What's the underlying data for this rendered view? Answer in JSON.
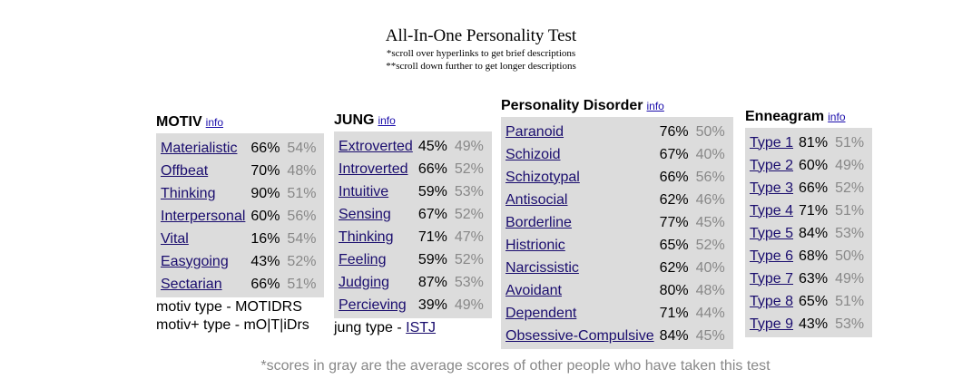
{
  "header": {
    "title": "All-In-One Personality Test",
    "note1": "*scroll over hyperlinks to get brief descriptions",
    "note2": "**scroll down further to get longer descriptions"
  },
  "info_label": "info",
  "motiv": {
    "title": "MOTIV",
    "rows": [
      {
        "name": "Materialistic",
        "score": "66%",
        "avg": "54%"
      },
      {
        "name": "Offbeat",
        "score": "70%",
        "avg": "48%"
      },
      {
        "name": "Thinking",
        "score": "90%",
        "avg": "51%"
      },
      {
        "name": "Interpersonal",
        "score": "60%",
        "avg": "56%"
      },
      {
        "name": "Vital",
        "score": "16%",
        "avg": "54%"
      },
      {
        "name": "Easygoing",
        "score": "43%",
        "avg": "52%"
      },
      {
        "name": "Sectarian",
        "score": "66%",
        "avg": "51%"
      }
    ],
    "type_line": "motiv type - MOTIDRS",
    "plus_type_line": "motiv+ type - mO|T|iDrs"
  },
  "jung": {
    "title": "JUNG",
    "rows": [
      {
        "name": "Extroverted",
        "score": "45%",
        "avg": "49%"
      },
      {
        "name": "Introverted",
        "score": "66%",
        "avg": "52%"
      },
      {
        "name": "Intuitive",
        "score": "59%",
        "avg": "53%"
      },
      {
        "name": "Sensing",
        "score": "67%",
        "avg": "52%"
      },
      {
        "name": "Thinking",
        "score": "71%",
        "avg": "47%"
      },
      {
        "name": "Feeling",
        "score": "59%",
        "avg": "52%"
      },
      {
        "name": "Judging",
        "score": "87%",
        "avg": "53%"
      },
      {
        "name": "Percieving",
        "score": "39%",
        "avg": "49%"
      }
    ],
    "type_prefix": "jung type - ",
    "type_value": "ISTJ"
  },
  "pd": {
    "title": "Personality Disorder",
    "rows": [
      {
        "name": "Paranoid",
        "score": "76%",
        "avg": "50%"
      },
      {
        "name": "Schizoid",
        "score": "67%",
        "avg": "40%"
      },
      {
        "name": "Schizotypal",
        "score": "66%",
        "avg": "56%"
      },
      {
        "name": "Antisocial",
        "score": "62%",
        "avg": "46%"
      },
      {
        "name": "Borderline",
        "score": "77%",
        "avg": "45%"
      },
      {
        "name": "Histrionic",
        "score": "65%",
        "avg": "52%"
      },
      {
        "name": "Narcissistic",
        "score": "62%",
        "avg": "40%"
      },
      {
        "name": "Avoidant",
        "score": "80%",
        "avg": "48%"
      },
      {
        "name": "Dependent",
        "score": "71%",
        "avg": "44%"
      },
      {
        "name": "Obsessive-Compulsive",
        "score": "84%",
        "avg": "45%"
      }
    ]
  },
  "enneagram": {
    "title": "Enneagram",
    "rows": [
      {
        "name": "Type 1",
        "score": "81%",
        "avg": "51%"
      },
      {
        "name": "Type 2",
        "score": "60%",
        "avg": "49%"
      },
      {
        "name": "Type 3",
        "score": "66%",
        "avg": "52%"
      },
      {
        "name": "Type 4",
        "score": "71%",
        "avg": "51%"
      },
      {
        "name": "Type 5",
        "score": "84%",
        "avg": "53%"
      },
      {
        "name": "Type 6",
        "score": "68%",
        "avg": "50%"
      },
      {
        "name": "Type 7",
        "score": "63%",
        "avg": "49%"
      },
      {
        "name": "Type 8",
        "score": "65%",
        "avg": "51%"
      },
      {
        "name": "Type 9",
        "score": "43%",
        "avg": "53%"
      }
    ]
  },
  "footer": "*scores in gray are the average scores of other people who have taken this test"
}
